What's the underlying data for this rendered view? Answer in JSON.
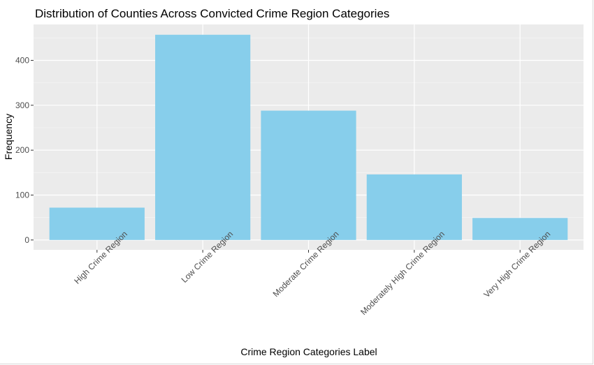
{
  "chart_data": {
    "type": "bar",
    "title": "Distribution of Counties Across Convicted Crime Region Categories",
    "xlabel": "Crime Region Categories Label",
    "ylabel": "Frequency",
    "categories": [
      "High Crime Region",
      "Low Crime Region",
      "Moderate Crime Region",
      "Moderately High Crime Region",
      "Very High Crime Region"
    ],
    "values": [
      72,
      457,
      288,
      146,
      49
    ],
    "yticks": [
      0,
      100,
      200,
      300,
      400
    ],
    "ylim": [
      -22,
      480
    ],
    "grid": true,
    "legend": "none",
    "colors": {
      "bar": "#87CEEB",
      "panel": "#EBEBEB",
      "grid_major": "#FFFFFF",
      "grid_minor": "#F5F5F5"
    }
  }
}
